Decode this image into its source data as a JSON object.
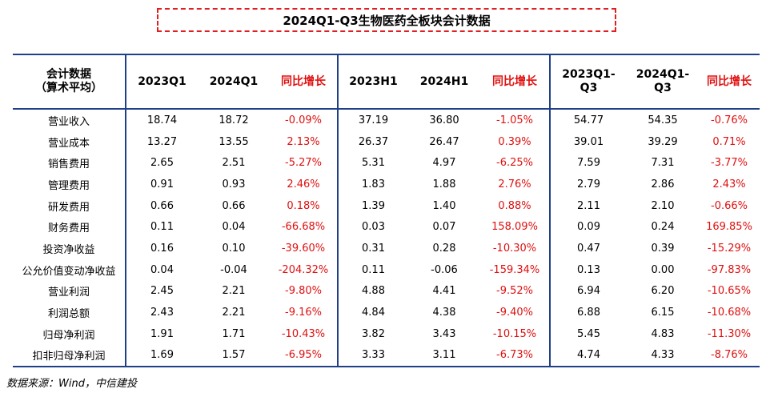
{
  "title": "2024Q1-Q3生物医药全板块会计数据",
  "header": {
    "label_line1": "会计数据",
    "label_line2": "（算术平均）",
    "cols": [
      {
        "line1": "2023Q1",
        "line2": ""
      },
      {
        "line1": "2024Q1",
        "line2": ""
      },
      {
        "line1": "同比增长",
        "line2": ""
      },
      {
        "line1": "2023H1",
        "line2": ""
      },
      {
        "line1": "2024H1",
        "line2": ""
      },
      {
        "line1": "同比增长",
        "line2": ""
      },
      {
        "line1": "2023Q1-",
        "line2": "Q3"
      },
      {
        "line1": "2024Q1-",
        "line2": "Q3"
      },
      {
        "line1": "同比增长",
        "line2": ""
      }
    ]
  },
  "rows": [
    {
      "label": "营业收入",
      "values": [
        "18.74",
        "18.72",
        "-0.09%",
        "37.19",
        "36.80",
        "-1.05%",
        "54.77",
        "54.35",
        "-0.76%"
      ]
    },
    {
      "label": "营业成本",
      "values": [
        "13.27",
        "13.55",
        "2.13%",
        "26.37",
        "26.47",
        "0.39%",
        "39.01",
        "39.29",
        "0.71%"
      ]
    },
    {
      "label": "销售费用",
      "values": [
        "2.65",
        "2.51",
        "-5.27%",
        "5.31",
        "4.97",
        "-6.25%",
        "7.59",
        "7.31",
        "-3.77%"
      ]
    },
    {
      "label": "管理费用",
      "values": [
        "0.91",
        "0.93",
        "2.46%",
        "1.83",
        "1.88",
        "2.76%",
        "2.79",
        "2.86",
        "2.43%"
      ]
    },
    {
      "label": "研发费用",
      "values": [
        "0.66",
        "0.66",
        "0.18%",
        "1.39",
        "1.40",
        "0.88%",
        "2.11",
        "2.10",
        "-0.66%"
      ]
    },
    {
      "label": "财务费用",
      "values": [
        "0.11",
        "0.04",
        "-66.68%",
        "0.03",
        "0.07",
        "158.09%",
        "0.09",
        "0.24",
        "169.85%"
      ]
    },
    {
      "label": "投资净收益",
      "values": [
        "0.16",
        "0.10",
        "-39.60%",
        "0.31",
        "0.28",
        "-10.30%",
        "0.47",
        "0.39",
        "-15.29%"
      ]
    },
    {
      "label": "公允价值变动净收益",
      "values": [
        "0.04",
        "-0.04",
        "-204.32%",
        "0.11",
        "-0.06",
        "-159.34%",
        "0.13",
        "0.00",
        "-97.83%"
      ]
    },
    {
      "label": "营业利润",
      "values": [
        "2.45",
        "2.21",
        "-9.80%",
        "4.88",
        "4.41",
        "-9.52%",
        "6.94",
        "6.20",
        "-10.65%"
      ]
    },
    {
      "label": "利润总额",
      "values": [
        "2.43",
        "2.21",
        "-9.16%",
        "4.84",
        "4.38",
        "-9.40%",
        "6.88",
        "6.15",
        "-10.68%"
      ]
    },
    {
      "label": "归母净利润",
      "values": [
        "1.91",
        "1.71",
        "-10.43%",
        "3.82",
        "3.43",
        "-10.15%",
        "5.45",
        "4.83",
        "-11.30%"
      ]
    },
    {
      "label": "扣非归母净利润",
      "values": [
        "1.69",
        "1.57",
        "-6.95%",
        "3.33",
        "3.11",
        "-6.73%",
        "4.74",
        "4.33",
        "-8.76%"
      ]
    }
  ],
  "source": "数据来源：Wind，中信建投",
  "colors": {
    "accent_red": "#e01010",
    "rule_blue": "#1f3f86",
    "title_border": "#e02020"
  }
}
